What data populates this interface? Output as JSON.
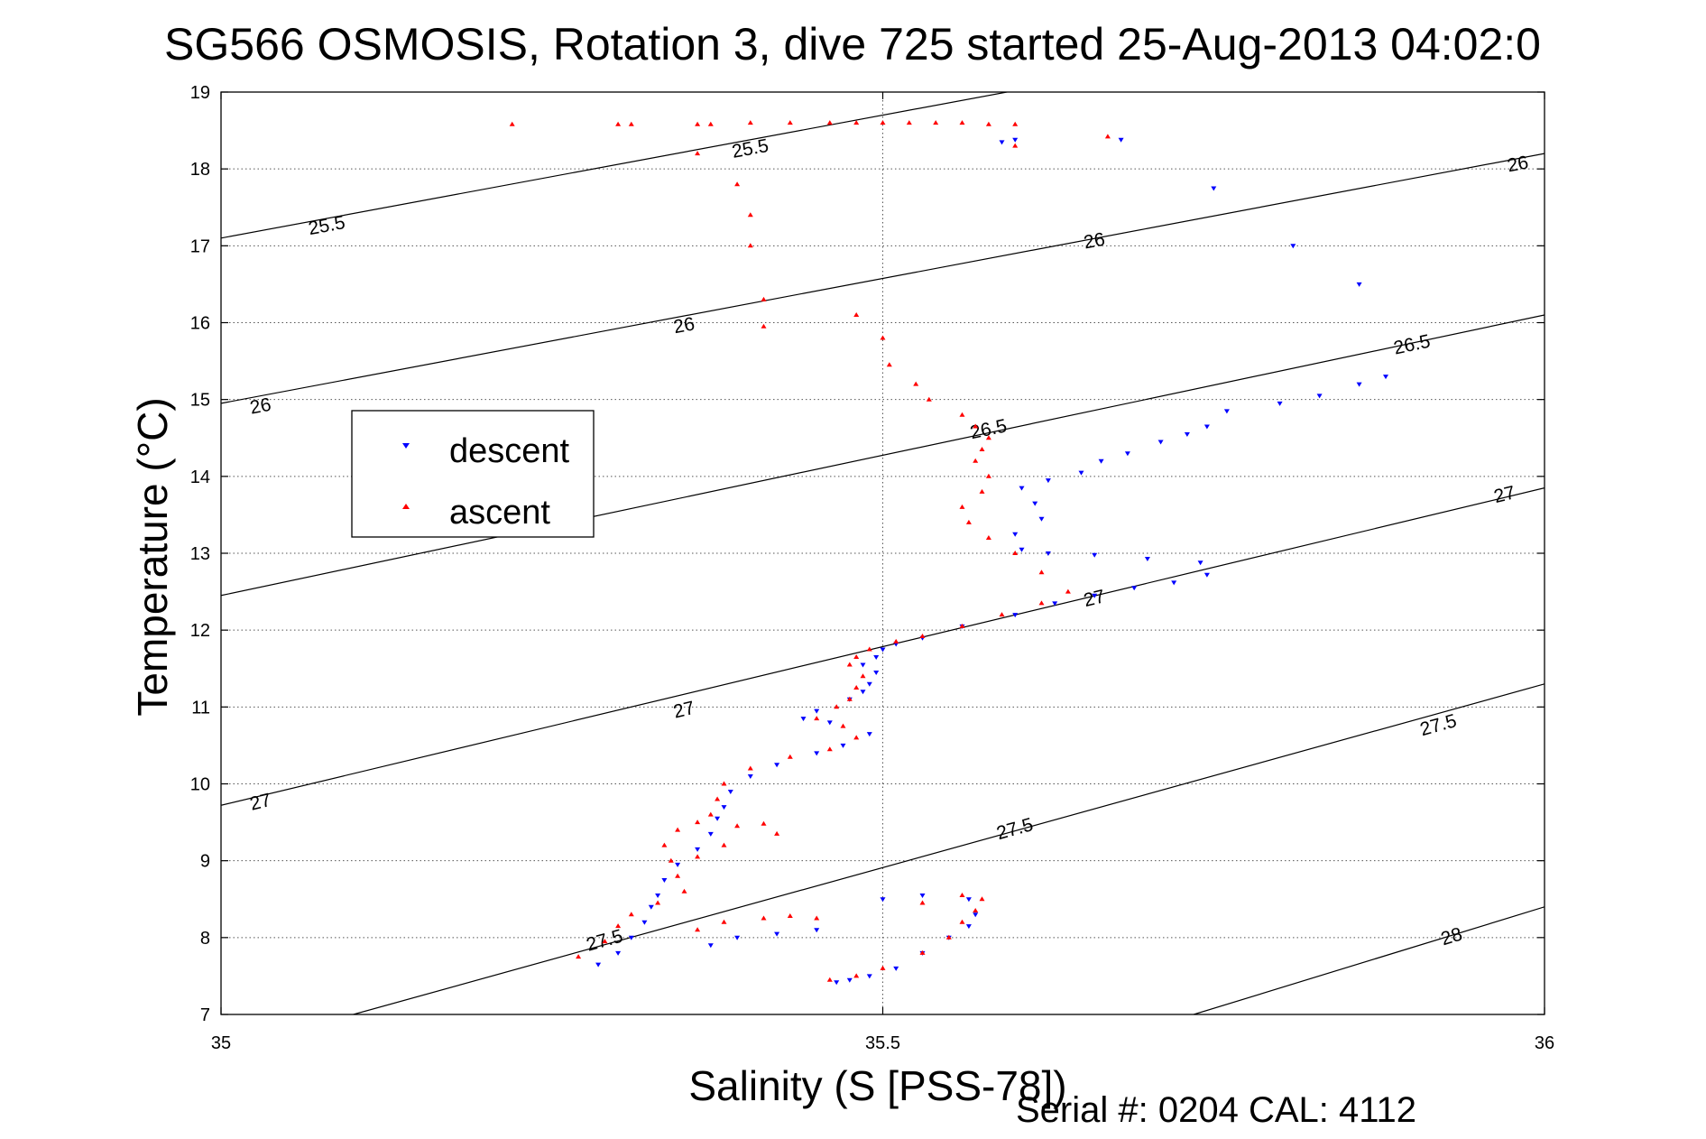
{
  "chart_data": {
    "type": "scatter",
    "title": "SG566 OSMOSIS, Rotation 3, dive 725 started 25-Aug-2013 04:02:0",
    "xlabel": "Salinity (S [PSS-78])",
    "ylabel": "Temperature (°C)",
    "xlim": [
      35,
      36
    ],
    "ylim": [
      7,
      19
    ],
    "xticks": [
      "35",
      "35.5",
      "36"
    ],
    "yticks": [
      "7",
      "8",
      "9",
      "10",
      "11",
      "12",
      "13",
      "14",
      "15",
      "16",
      "17",
      "18",
      "19"
    ],
    "grid": "dotted",
    "legend_position": "upper-left",
    "footer": "Serial #: 0204  CAL: 4112",
    "density_contours": [
      {
        "label": "25.5",
        "points": [
          [
            35.0,
            17.1
          ],
          [
            35.625,
            19.1
          ]
        ]
      },
      {
        "label": "26",
        "points": [
          [
            35.0,
            14.95
          ],
          [
            36.0,
            18.2
          ]
        ]
      },
      {
        "label": "26.5",
        "points": [
          [
            35.0,
            12.45
          ],
          [
            36.0,
            16.1
          ]
        ]
      },
      {
        "label": "27",
        "points": [
          [
            35.0,
            9.72
          ],
          [
            36.0,
            13.85
          ]
        ]
      },
      {
        "label": "27.5",
        "points": [
          [
            35.1,
            7.0
          ],
          [
            36.0,
            11.3
          ]
        ]
      },
      {
        "label": "28",
        "points": [
          [
            35.735,
            7.0
          ],
          [
            36.0,
            8.4
          ]
        ]
      }
    ],
    "contour_labels": [
      {
        "text": "25.5",
        "x": 35.08,
        "y": 17.25
      },
      {
        "text": "25.5",
        "x": 35.4,
        "y": 18.25
      },
      {
        "text": "26",
        "x": 35.03,
        "y": 14.9
      },
      {
        "text": "26",
        "x": 35.35,
        "y": 15.95
      },
      {
        "text": "26",
        "x": 35.66,
        "y": 17.05
      },
      {
        "text": "26",
        "x": 35.98,
        "y": 18.05
      },
      {
        "text": "26.5",
        "x": 35.58,
        "y": 14.6
      },
      {
        "text": "26.5",
        "x": 35.9,
        "y": 15.7
      },
      {
        "text": "27",
        "x": 35.03,
        "y": 9.75
      },
      {
        "text": "27",
        "x": 35.35,
        "y": 10.95
      },
      {
        "text": "27",
        "x": 35.66,
        "y": 12.4
      },
      {
        "text": "27",
        "x": 35.97,
        "y": 13.75
      },
      {
        "text": "27.5",
        "x": 35.6,
        "y": 9.4
      },
      {
        "text": "27.5",
        "x": 35.92,
        "y": 10.75
      },
      {
        "text": "27.5",
        "x": 35.29,
        "y": 7.95
      },
      {
        "text": "28",
        "x": 35.93,
        "y": 8.0
      }
    ],
    "series": [
      {
        "name": "descent",
        "color": "#0000ff",
        "marker": "triangle-down",
        "points": [
          [
            35.465,
            7.42
          ],
          [
            35.475,
            7.45
          ],
          [
            35.49,
            7.5
          ],
          [
            35.51,
            7.6
          ],
          [
            35.53,
            7.8
          ],
          [
            35.55,
            8.0
          ],
          [
            35.565,
            8.15
          ],
          [
            35.57,
            8.3
          ],
          [
            35.565,
            8.5
          ],
          [
            35.53,
            8.55
          ],
          [
            35.5,
            8.5
          ],
          [
            35.285,
            7.65
          ],
          [
            35.3,
            7.8
          ],
          [
            35.31,
            8.0
          ],
          [
            35.32,
            8.2
          ],
          [
            35.325,
            8.4
          ],
          [
            35.33,
            8.55
          ],
          [
            35.335,
            8.75
          ],
          [
            35.345,
            8.95
          ],
          [
            35.36,
            9.15
          ],
          [
            35.37,
            9.35
          ],
          [
            35.375,
            9.55
          ],
          [
            35.38,
            9.7
          ],
          [
            35.385,
            9.9
          ],
          [
            35.4,
            10.1
          ],
          [
            35.42,
            10.25
          ],
          [
            35.45,
            10.4
          ],
          [
            35.47,
            10.5
          ],
          [
            35.49,
            10.65
          ],
          [
            35.46,
            10.8
          ],
          [
            35.44,
            10.85
          ],
          [
            35.45,
            10.95
          ],
          [
            35.475,
            11.1
          ],
          [
            35.485,
            11.2
          ],
          [
            35.49,
            11.3
          ],
          [
            35.495,
            11.45
          ],
          [
            35.485,
            11.55
          ],
          [
            35.495,
            11.65
          ],
          [
            35.5,
            11.75
          ],
          [
            35.51,
            11.82
          ],
          [
            35.53,
            11.9
          ],
          [
            35.56,
            12.05
          ],
          [
            35.6,
            12.2
          ],
          [
            35.63,
            12.35
          ],
          [
            35.66,
            12.45
          ],
          [
            35.69,
            12.55
          ],
          [
            35.72,
            12.62
          ],
          [
            35.745,
            12.72
          ],
          [
            35.74,
            12.88
          ],
          [
            35.7,
            12.93
          ],
          [
            35.66,
            12.98
          ],
          [
            35.625,
            13.0
          ],
          [
            35.605,
            13.05
          ],
          [
            35.6,
            13.25
          ],
          [
            35.62,
            13.45
          ],
          [
            35.615,
            13.65
          ],
          [
            35.605,
            13.85
          ],
          [
            35.625,
            13.95
          ],
          [
            35.65,
            14.05
          ],
          [
            35.665,
            14.2
          ],
          [
            35.685,
            14.3
          ],
          [
            35.71,
            14.45
          ],
          [
            35.73,
            14.55
          ],
          [
            35.745,
            14.65
          ],
          [
            35.76,
            14.85
          ],
          [
            35.8,
            14.95
          ],
          [
            35.83,
            15.05
          ],
          [
            35.86,
            15.2
          ],
          [
            35.88,
            15.3
          ],
          [
            35.86,
            16.5
          ],
          [
            35.81,
            17.0
          ],
          [
            35.75,
            17.75
          ],
          [
            35.68,
            18.38
          ],
          [
            35.6,
            18.38
          ],
          [
            35.59,
            18.35
          ],
          [
            35.37,
            7.9
          ],
          [
            35.39,
            8.0
          ],
          [
            35.42,
            8.05
          ],
          [
            35.45,
            8.1
          ]
        ]
      },
      {
        "name": "ascent",
        "color": "#ff0000",
        "marker": "triangle-up",
        "points": [
          [
            35.46,
            7.45
          ],
          [
            35.48,
            7.5
          ],
          [
            35.5,
            7.6
          ],
          [
            35.53,
            7.8
          ],
          [
            35.55,
            8.0
          ],
          [
            35.56,
            8.2
          ],
          [
            35.57,
            8.35
          ],
          [
            35.575,
            8.5
          ],
          [
            35.56,
            8.55
          ],
          [
            35.53,
            8.45
          ],
          [
            35.27,
            7.75
          ],
          [
            35.29,
            7.95
          ],
          [
            35.3,
            8.15
          ],
          [
            35.31,
            8.3
          ],
          [
            35.33,
            8.45
          ],
          [
            35.35,
            8.6
          ],
          [
            35.345,
            8.8
          ],
          [
            35.34,
            9.0
          ],
          [
            35.335,
            9.2
          ],
          [
            35.345,
            9.4
          ],
          [
            35.36,
            9.5
          ],
          [
            35.39,
            9.45
          ],
          [
            35.41,
            9.48
          ],
          [
            35.42,
            9.35
          ],
          [
            35.38,
            9.2
          ],
          [
            35.36,
            9.05
          ],
          [
            35.37,
            9.6
          ],
          [
            35.375,
            9.8
          ],
          [
            35.38,
            10.0
          ],
          [
            35.4,
            10.2
          ],
          [
            35.43,
            10.35
          ],
          [
            35.46,
            10.45
          ],
          [
            35.48,
            10.6
          ],
          [
            35.47,
            10.75
          ],
          [
            35.45,
            10.85
          ],
          [
            35.465,
            11.0
          ],
          [
            35.475,
            11.1
          ],
          [
            35.48,
            11.25
          ],
          [
            35.485,
            11.4
          ],
          [
            35.475,
            11.55
          ],
          [
            35.48,
            11.65
          ],
          [
            35.49,
            11.75
          ],
          [
            35.51,
            11.85
          ],
          [
            35.53,
            11.92
          ],
          [
            35.56,
            12.05
          ],
          [
            35.59,
            12.2
          ],
          [
            35.62,
            12.35
          ],
          [
            35.64,
            12.5
          ],
          [
            35.62,
            12.75
          ],
          [
            35.6,
            13.0
          ],
          [
            35.58,
            13.2
          ],
          [
            35.565,
            13.4
          ],
          [
            35.56,
            13.6
          ],
          [
            35.575,
            13.8
          ],
          [
            35.58,
            14.0
          ],
          [
            35.57,
            14.2
          ],
          [
            35.575,
            14.35
          ],
          [
            35.58,
            14.5
          ],
          [
            35.57,
            14.65
          ],
          [
            35.56,
            14.8
          ],
          [
            35.535,
            15.0
          ],
          [
            35.525,
            15.2
          ],
          [
            35.505,
            15.45
          ],
          [
            35.5,
            15.8
          ],
          [
            35.48,
            16.1
          ],
          [
            35.41,
            16.3
          ],
          [
            35.41,
            15.95
          ],
          [
            35.4,
            17.0
          ],
          [
            35.4,
            17.4
          ],
          [
            35.39,
            17.8
          ],
          [
            35.36,
            18.2
          ],
          [
            35.37,
            18.58
          ],
          [
            35.36,
            18.58
          ],
          [
            35.31,
            18.58
          ],
          [
            35.3,
            18.58
          ],
          [
            35.22,
            18.58
          ],
          [
            35.4,
            18.6
          ],
          [
            35.43,
            18.6
          ],
          [
            35.46,
            18.6
          ],
          [
            35.48,
            18.6
          ],
          [
            35.5,
            18.6
          ],
          [
            35.52,
            18.6
          ],
          [
            35.54,
            18.6
          ],
          [
            35.56,
            18.6
          ],
          [
            35.58,
            18.58
          ],
          [
            35.6,
            18.58
          ],
          [
            35.67,
            18.42
          ],
          [
            35.6,
            18.3
          ],
          [
            35.36,
            8.1
          ],
          [
            35.38,
            8.2
          ],
          [
            35.41,
            8.25
          ],
          [
            35.43,
            8.28
          ],
          [
            35.45,
            8.25
          ]
        ]
      }
    ]
  }
}
